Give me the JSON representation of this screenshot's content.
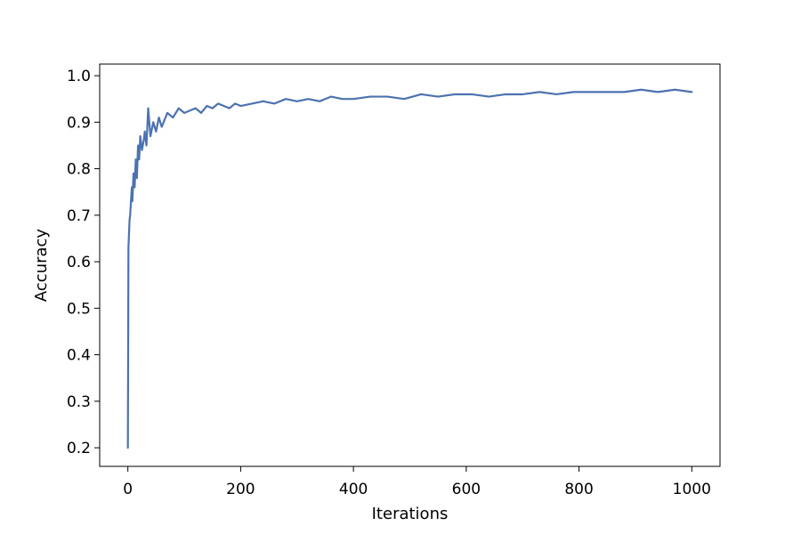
{
  "chart_data": {
    "type": "line",
    "title": "",
    "xlabel": "Iterations",
    "ylabel": "Accuracy",
    "xlim": [
      -50,
      1050
    ],
    "ylim": [
      0.16,
      1.025
    ],
    "xticks": [
      0,
      200,
      400,
      600,
      800,
      1000
    ],
    "yticks": [
      0.2,
      0.3,
      0.4,
      0.5,
      0.6,
      0.7,
      0.8,
      0.9,
      1.0
    ],
    "grid": false,
    "legend": "none",
    "series_color": "#4c72b0",
    "series": [
      {
        "x": [
          0,
          1,
          2,
          3,
          4,
          5,
          6,
          7,
          8,
          10,
          12,
          14,
          16,
          18,
          20,
          22,
          25,
          28,
          30,
          33,
          36,
          40,
          45,
          50,
          55,
          60,
          70,
          80,
          90,
          100,
          110,
          120,
          130,
          140,
          150,
          160,
          170,
          180,
          190,
          200,
          220,
          240,
          260,
          280,
          300,
          320,
          340,
          360,
          380,
          400,
          430,
          460,
          490,
          520,
          550,
          580,
          610,
          640,
          670,
          700,
          730,
          760,
          790,
          820,
          850,
          880,
          910,
          940,
          970,
          1000
        ],
        "values": [
          0.2,
          0.63,
          0.66,
          0.69,
          0.7,
          0.72,
          0.74,
          0.76,
          0.73,
          0.79,
          0.76,
          0.82,
          0.78,
          0.85,
          0.82,
          0.87,
          0.84,
          0.86,
          0.88,
          0.85,
          0.93,
          0.87,
          0.9,
          0.88,
          0.91,
          0.89,
          0.92,
          0.91,
          0.93,
          0.92,
          0.925,
          0.93,
          0.92,
          0.935,
          0.93,
          0.94,
          0.935,
          0.93,
          0.94,
          0.935,
          0.94,
          0.945,
          0.94,
          0.95,
          0.945,
          0.95,
          0.945,
          0.955,
          0.95,
          0.95,
          0.955,
          0.955,
          0.95,
          0.96,
          0.955,
          0.96,
          0.96,
          0.955,
          0.96,
          0.96,
          0.965,
          0.96,
          0.965,
          0.965,
          0.965,
          0.965,
          0.97,
          0.965,
          0.97,
          0.965
        ]
      }
    ]
  }
}
